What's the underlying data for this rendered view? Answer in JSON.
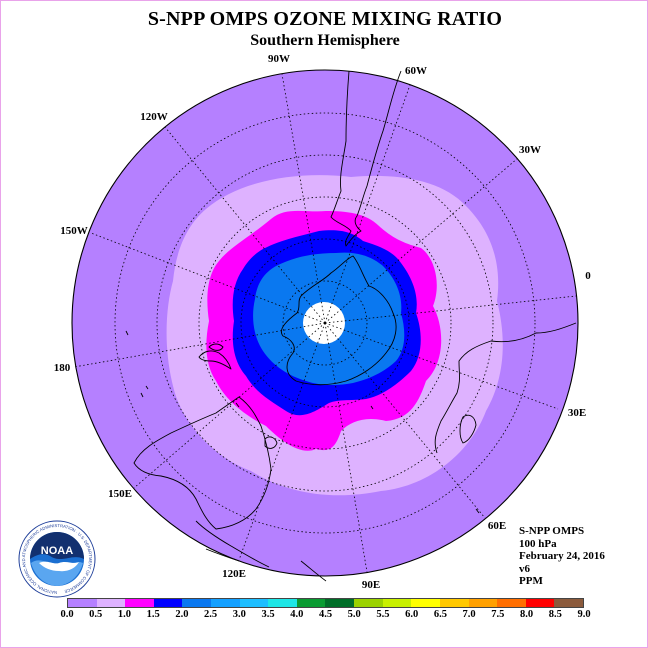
{
  "title": "S-NPP OMPS OZONE MIXING RATIO",
  "subtitle": "Southern Hemisphere",
  "longitude_labels": [
    "90W",
    "60W",
    "30W",
    "0",
    "30E",
    "60E",
    "90E",
    "120E",
    "150E",
    "180",
    "150W",
    "120W"
  ],
  "info": {
    "instrument": "S-NPP OMPS",
    "level": "100 hPa",
    "date": "February 24, 2016",
    "version": "v6",
    "units": "PPM"
  },
  "logo": {
    "text": "NOAA",
    "ring_text": "NATIONAL OCEANIC AND ATMOSPHERIC ADMINISTRATION · U.S. DEPARTMENT OF COMMERCE"
  },
  "colorbar": {
    "colors": [
      "#b580ff",
      "#deb2ff",
      "#ff00ff",
      "#0000ff",
      "#0a78f0",
      "#14a0ff",
      "#1ebeff",
      "#1ee6e6",
      "#0a9b32",
      "#006e28",
      "#9bd200",
      "#c8f000",
      "#ffff00",
      "#ffc800",
      "#ffa000",
      "#ff6e00",
      "#ff0000",
      "#8b5a3c"
    ],
    "ticks": [
      "0.0",
      "0.5",
      "1.0",
      "1.5",
      "2.0",
      "2.5",
      "3.0",
      "3.5",
      "4.0",
      "4.5",
      "5.0",
      "5.5",
      "6.0",
      "6.5",
      "7.0",
      "7.5",
      "8.0",
      "8.5",
      "9.0"
    ]
  }
}
